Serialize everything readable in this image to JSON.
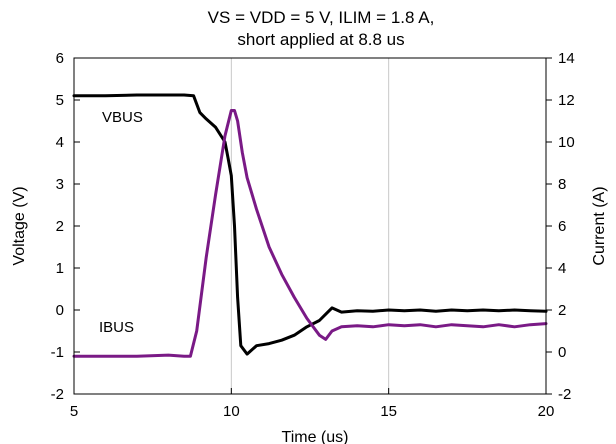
{
  "chart_data": {
    "type": "line",
    "title": "VS = VDD = 5 V, ILIM = 1.8 A,",
    "subtitle": "short applied at 8.8 us",
    "xlabel": "Time (us)",
    "ylabel_left": "Voltage (V)",
    "ylabel_right": "Current (A)",
    "xlim": [
      5,
      20
    ],
    "ylim_left": [
      -2,
      6
    ],
    "ylim_right": [
      -2,
      14
    ],
    "x_ticks": [
      5,
      10,
      15,
      20
    ],
    "y_ticks_left": [
      -2,
      -1,
      0,
      1,
      2,
      3,
      4,
      5,
      6
    ],
    "y_ticks_right": [
      -2,
      0,
      2,
      4,
      6,
      8,
      10,
      12,
      14
    ],
    "grid": "vertical",
    "series": [
      {
        "name": "VBUS",
        "axis": "left",
        "color": "#000000",
        "x": [
          5.0,
          6.0,
          7.0,
          8.0,
          8.5,
          8.8,
          9.0,
          9.2,
          9.5,
          9.8,
          9.9,
          10.0,
          10.1,
          10.2,
          10.3,
          10.5,
          10.8,
          11.2,
          11.6,
          12.0,
          12.4,
          12.8,
          13.0,
          13.2,
          13.5,
          14.0,
          14.5,
          15.0,
          15.5,
          16.0,
          16.5,
          17.0,
          17.5,
          18.0,
          18.5,
          19.0,
          19.5,
          20.0
        ],
        "y": [
          5.1,
          5.1,
          5.12,
          5.12,
          5.12,
          5.1,
          4.7,
          4.55,
          4.35,
          4.0,
          3.6,
          3.2,
          2.0,
          0.3,
          -0.85,
          -1.05,
          -0.85,
          -0.8,
          -0.72,
          -0.6,
          -0.4,
          -0.25,
          -0.1,
          0.05,
          -0.05,
          -0.02,
          -0.03,
          0.0,
          -0.02,
          0.0,
          -0.03,
          0.0,
          -0.02,
          0.0,
          -0.02,
          0.0,
          -0.02,
          -0.03
        ]
      },
      {
        "name": "IBUS",
        "axis": "right",
        "color": "#7a1a86",
        "x": [
          5.0,
          6.0,
          7.0,
          8.0,
          8.5,
          8.7,
          8.9,
          9.2,
          9.5,
          9.8,
          10.0,
          10.1,
          10.2,
          10.35,
          10.5,
          10.8,
          11.2,
          11.6,
          12.0,
          12.4,
          12.8,
          13.0,
          13.2,
          13.5,
          14.0,
          14.5,
          15.0,
          15.5,
          16.0,
          16.5,
          17.0,
          17.5,
          18.0,
          18.5,
          19.0,
          19.5,
          20.0
        ],
        "y": [
          -0.2,
          -0.2,
          -0.2,
          -0.15,
          -0.2,
          -0.2,
          1.0,
          4.5,
          7.5,
          10.3,
          11.5,
          11.5,
          11.0,
          9.5,
          8.3,
          6.8,
          5.0,
          3.7,
          2.6,
          1.6,
          0.8,
          0.6,
          1.0,
          1.2,
          1.25,
          1.2,
          1.3,
          1.25,
          1.3,
          1.2,
          1.3,
          1.25,
          1.2,
          1.3,
          1.2,
          1.3,
          1.35
        ]
      }
    ]
  }
}
